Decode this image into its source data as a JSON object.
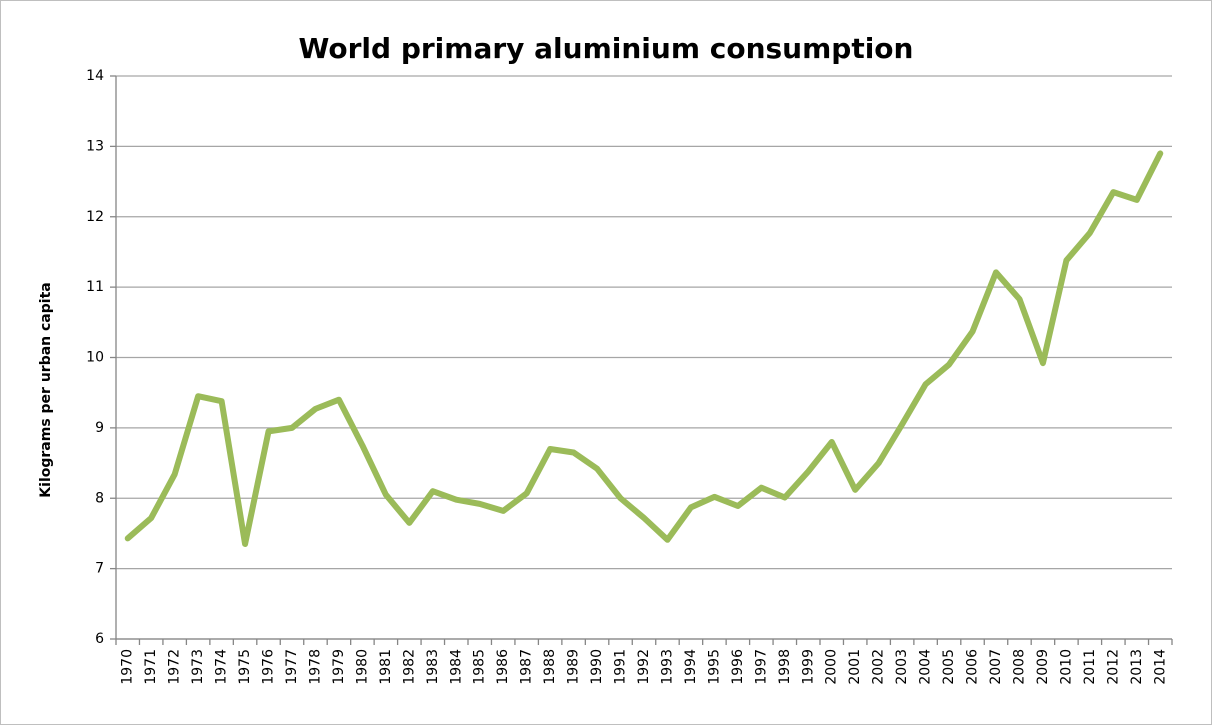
{
  "chart_data": {
    "type": "line",
    "title": "World primary aluminium consumption",
    "y_label": "Kilograms per urban capita",
    "categories": [
      "1970",
      "1971",
      "1972",
      "1973",
      "1974",
      "1975",
      "1976",
      "1977",
      "1978",
      "1979",
      "1980",
      "1981",
      "1982",
      "1983",
      "1984",
      "1985",
      "1986",
      "1987",
      "1988",
      "1989",
      "1990",
      "1991",
      "1992",
      "1993",
      "1994",
      "1995",
      "1996",
      "1997",
      "1998",
      "1999",
      "2000",
      "2001",
      "2002",
      "2003",
      "2004",
      "2005",
      "2006",
      "2007",
      "2008",
      "2009",
      "2010",
      "2011",
      "2012",
      "2013",
      "2014"
    ],
    "series": [
      {
        "name": "World primary aluminium consumption",
        "color": "#9bbb59",
        "values": [
          7.43,
          7.72,
          8.34,
          9.45,
          9.38,
          7.35,
          8.95,
          9.0,
          9.27,
          9.4,
          8.75,
          8.05,
          7.65,
          8.1,
          7.98,
          7.92,
          7.82,
          8.07,
          8.7,
          8.65,
          8.42,
          8.0,
          7.72,
          7.41,
          7.87,
          8.02,
          7.89,
          8.15,
          8.01,
          8.38,
          8.8,
          8.12,
          8.5,
          9.05,
          9.62,
          9.9,
          10.37,
          11.21,
          10.83,
          9.92,
          11.38,
          11.77,
          12.35,
          12.24,
          12.9
        ]
      }
    ],
    "ylim": [
      6,
      14
    ],
    "yticks": [
      6,
      7,
      8,
      9,
      10,
      11,
      12,
      13,
      14
    ],
    "grid": true
  }
}
